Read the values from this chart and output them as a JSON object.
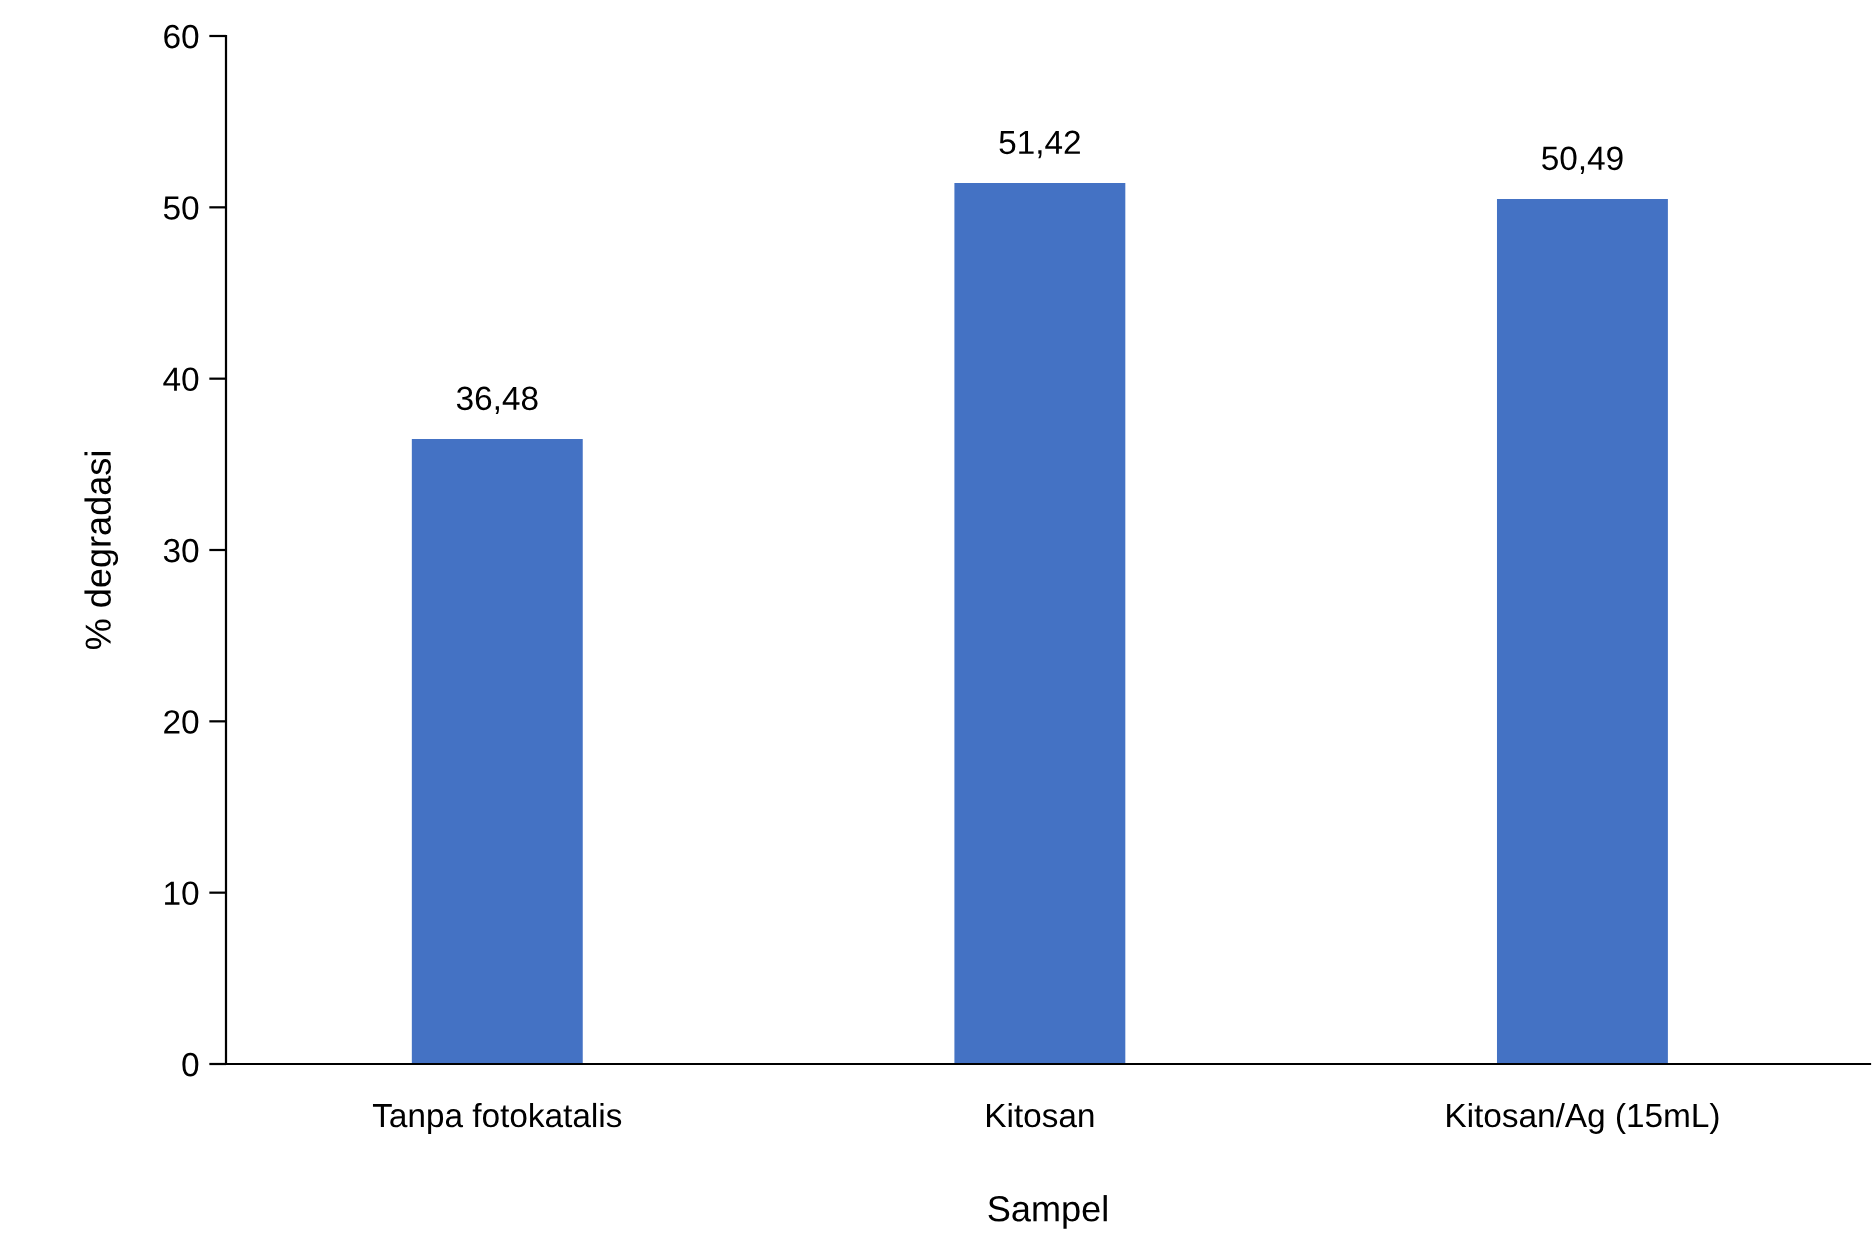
{
  "chart_data": {
    "type": "bar",
    "xlabel": "Sampel",
    "ylabel": "% degradasi",
    "categories": [
      "Tanpa fotokatalis",
      "Kitosan",
      "Kitosan/Ag (15mL)"
    ],
    "values": [
      36.48,
      51.42,
      50.49
    ],
    "value_labels": [
      "36,48",
      "51,42",
      "50,49"
    ],
    "color": "#4472c4",
    "ylim": [
      0,
      60
    ],
    "yticks": [
      0,
      10,
      20,
      30,
      40,
      50,
      60
    ],
    "grid": false
  }
}
